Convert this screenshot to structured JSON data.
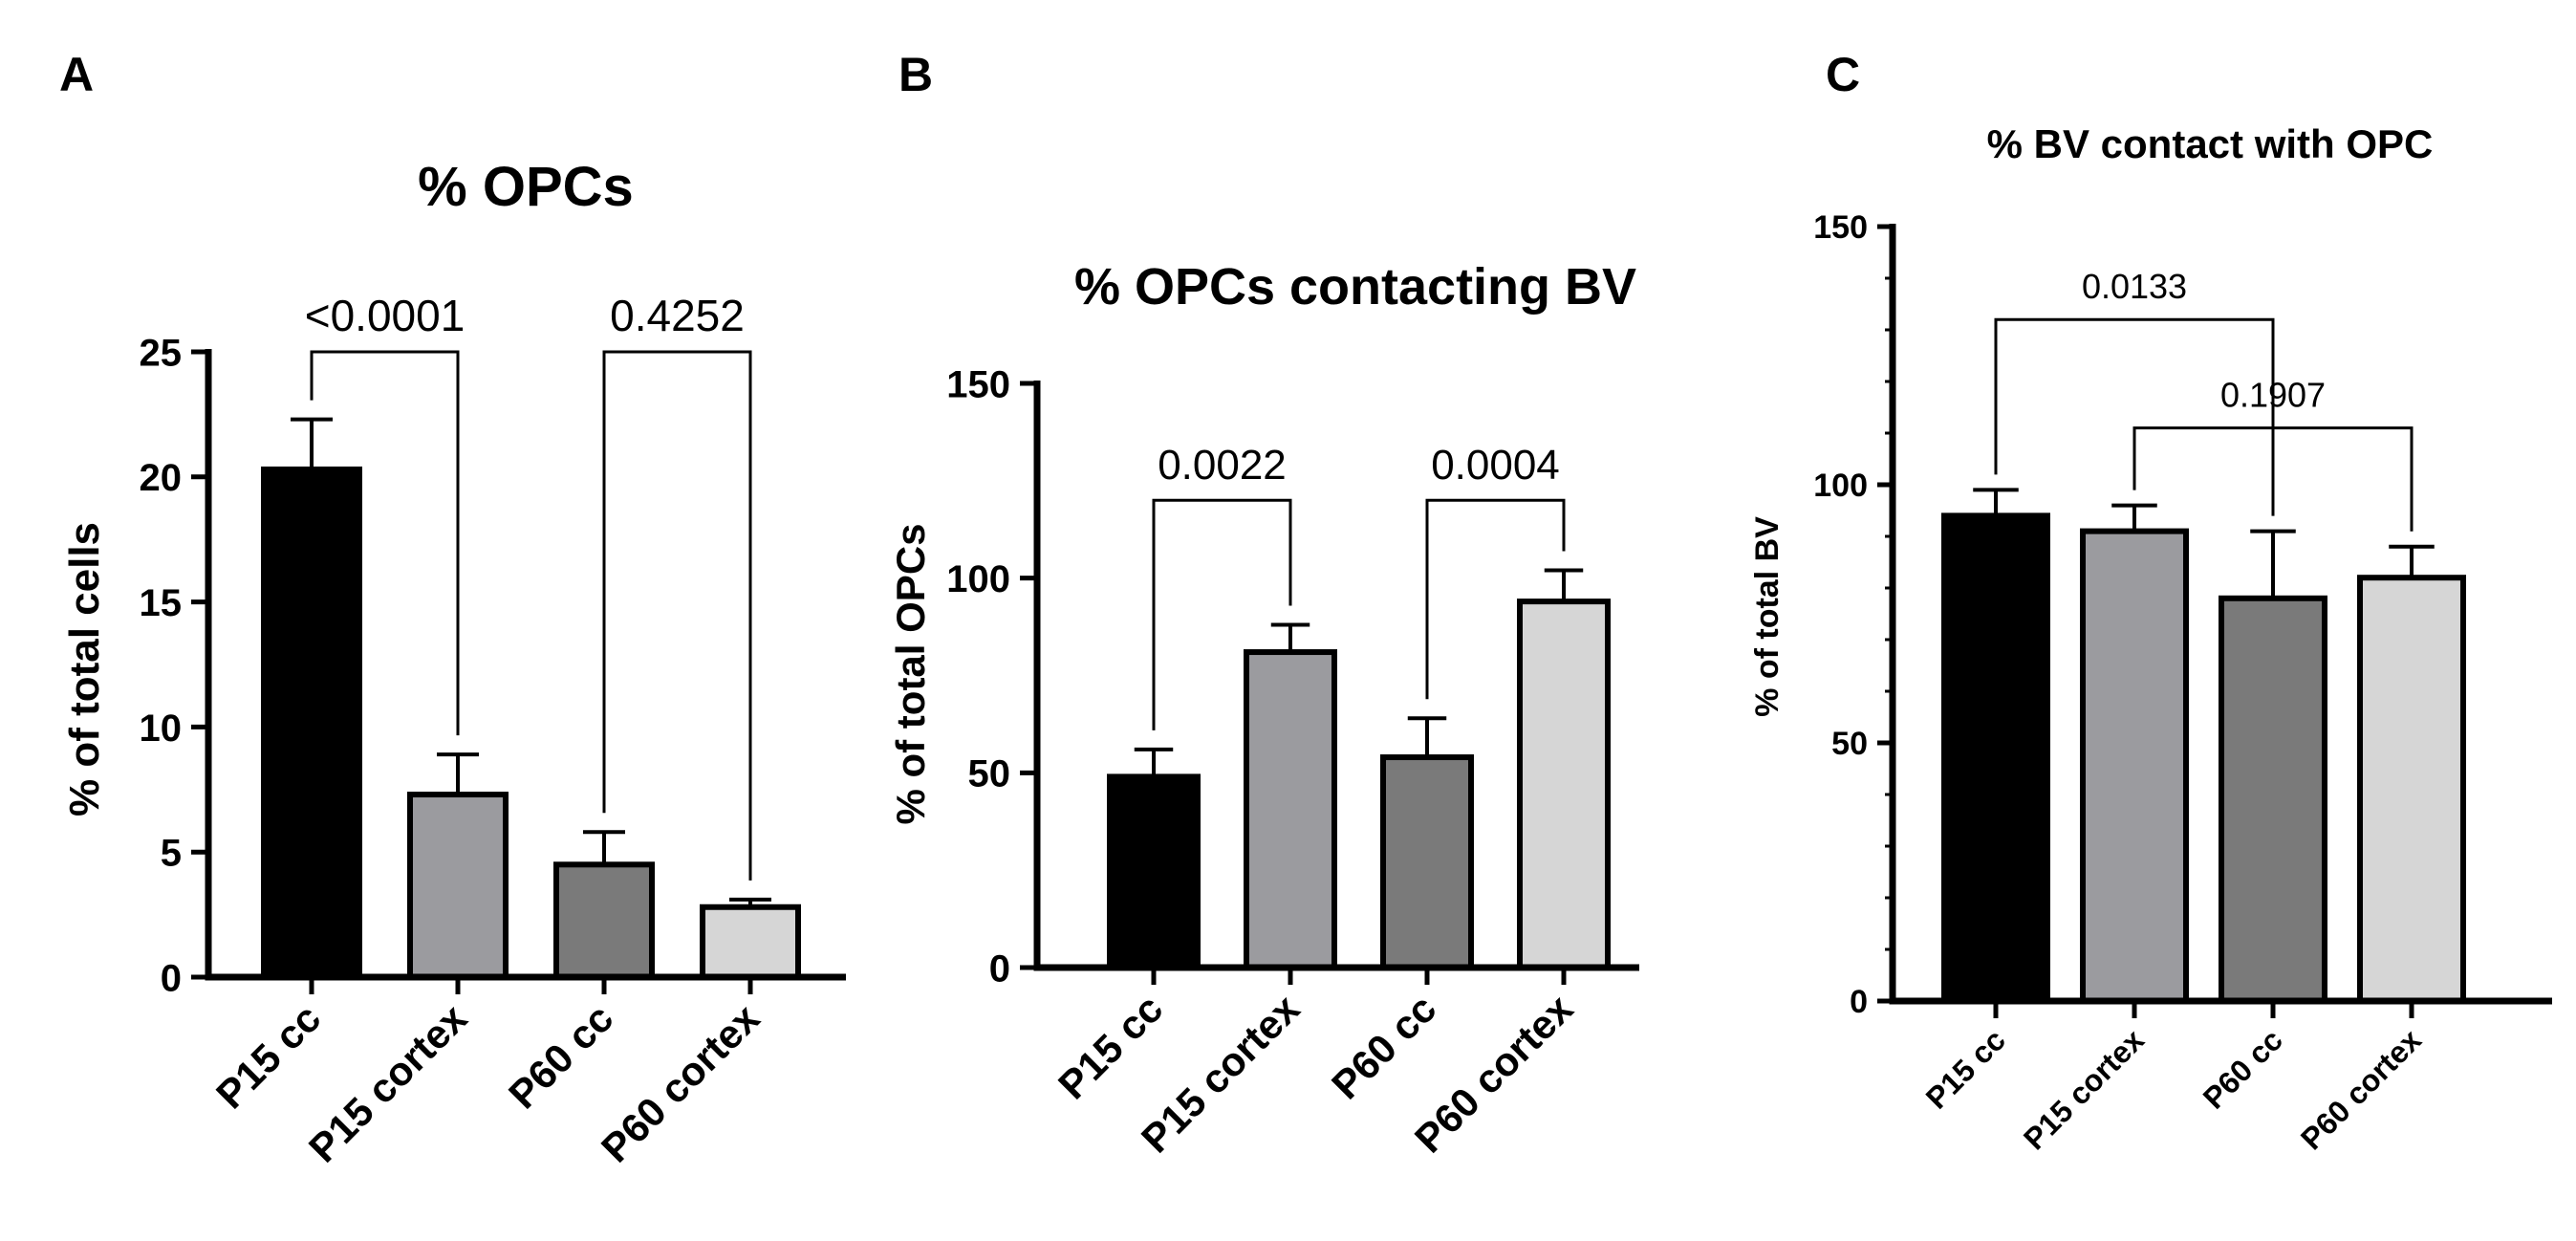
{
  "chart_data": [
    {
      "panel": "A",
      "type": "bar",
      "title": "% OPCs",
      "xlabel": "",
      "ylabel": "% of total cells",
      "ylim": [
        0,
        25
      ],
      "yticks": [
        0,
        5,
        10,
        15,
        20,
        25
      ],
      "categories": [
        "P15 cc",
        "P15 cortex",
        "P60 cc",
        "P60 cortex"
      ],
      "values": [
        20.3,
        7.3,
        4.5,
        2.8
      ],
      "errors": [
        2.0,
        1.6,
        1.3,
        0.3
      ],
      "colors": [
        "#000000",
        "#9b9b9f",
        "#7a7a7a",
        "#d6d6d6"
      ],
      "comparisons": [
        {
          "from": 0,
          "to": 1,
          "label": "<0.0001",
          "bracket_y": 25
        },
        {
          "from": 2,
          "to": 3,
          "label": "0.4252",
          "bracket_y": 25
        }
      ]
    },
    {
      "panel": "B",
      "type": "bar",
      "title": "% OPCs contacting BV",
      "xlabel": "",
      "ylabel": "% of total OPCs",
      "ylim": [
        0,
        150
      ],
      "yticks": [
        0,
        50,
        100,
        150
      ],
      "categories": [
        "P15 cc",
        "P15 cortex",
        "P60 cc",
        "P60 cortex"
      ],
      "values": [
        49,
        81,
        54,
        94
      ],
      "errors": [
        7,
        7,
        10,
        8
      ],
      "colors": [
        "#000000",
        "#9b9b9f",
        "#7a7a7a",
        "#d6d6d6"
      ],
      "comparisons": [
        {
          "from": 0,
          "to": 1,
          "label": "0.0022",
          "bracket_y": 120
        },
        {
          "from": 2,
          "to": 3,
          "label": "0.0004",
          "bracket_y": 120
        }
      ]
    },
    {
      "panel": "C",
      "type": "bar",
      "title": "% BV contact with OPC",
      "xlabel": "",
      "ylabel": "% of total BV",
      "ylim": [
        0,
        150
      ],
      "yticks": [
        0,
        50,
        100,
        150
      ],
      "categories": [
        "P15 cc",
        "P15 cortex",
        "P60 cc",
        "P60 cortex"
      ],
      "values": [
        94,
        91,
        78,
        82
      ],
      "errors": [
        5,
        5,
        13,
        6
      ],
      "colors": [
        "#000000",
        "#9b9b9f",
        "#7a7a7a",
        "#d6d6d6"
      ],
      "comparisons": [
        {
          "from": 0,
          "to": 2,
          "label": "0.0133",
          "bracket_y": 132
        },
        {
          "from": 1,
          "to": 3,
          "label": "0.1907",
          "bracket_y": 111
        }
      ]
    }
  ]
}
